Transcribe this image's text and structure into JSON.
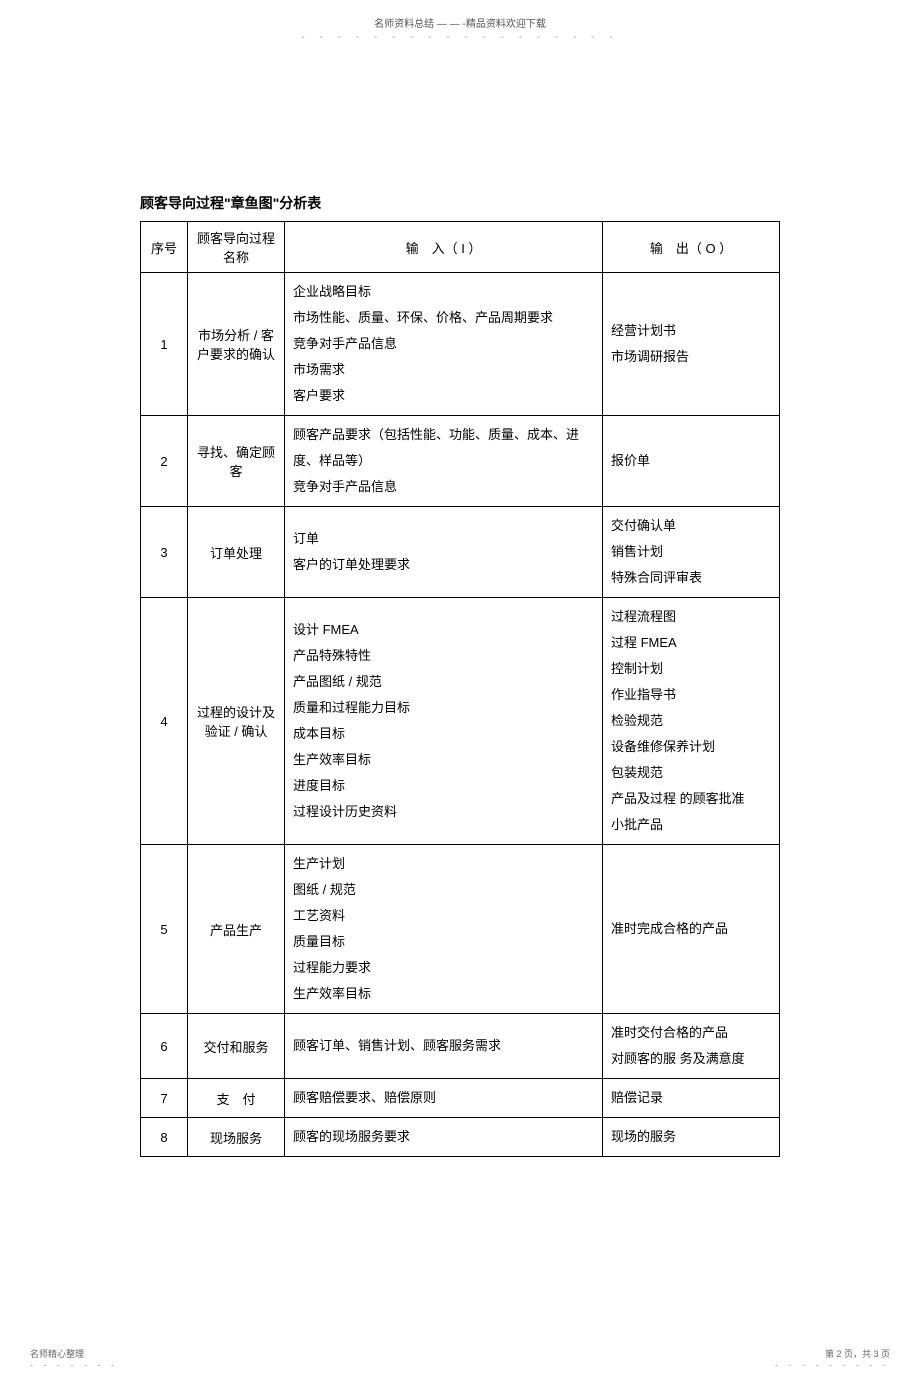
{
  "header": {
    "text": "名师资料总结 — — -精品资料欢迎下载",
    "dots": "- - - - - - - - - - - - - - - - - -"
  },
  "title": "顾客导向过程\"章鱼图\"分析表",
  "table": {
    "headers": {
      "seq": "序号",
      "name": "顾客导向过程名称",
      "input": "输　入（ I ）",
      "output": "输　出（ O ）"
    },
    "rows": [
      {
        "seq": "1",
        "name": "市场分析 / 客户要求的确认",
        "input": "企业战略目标\n市场性能、质量、环保、价格、产品周期要求\n竞争对手产品信息\n市场需求\n客户要求",
        "output": "经营计划书\n市场调研报告"
      },
      {
        "seq": "2",
        "name": "寻找、确定顾客",
        "input": "顾客产品要求（包括性能、功能、质量、成本、进度、样品等）\n竞争对手产品信息",
        "output": "报价单"
      },
      {
        "seq": "3",
        "name": "订单处理",
        "input": "订单\n客户的订单处理要求",
        "output": "交付确认单\n销售计划\n特殊合同评审表"
      },
      {
        "seq": "4",
        "name": "过程的设计及验证 / 确认",
        "input": "设计 FMEA\n产品特殊特性\n产品图纸 / 规范\n质量和过程能力目标\n成本目标\n生产效率目标\n进度目标\n过程设计历史资料",
        "output": "过程流程图\n过程 FMEA\n控制计划\n作业指导书\n检验规范\n设备维修保养计划\n包装规范\n产品及过程 的顾客批准\n小批产品"
      },
      {
        "seq": "5",
        "name": "产品生产",
        "input": "生产计划\n图纸 / 规范\n工艺资料\n质量目标\n过程能力要求\n生产效率目标",
        "output": "准时完成合格的产品"
      },
      {
        "seq": "6",
        "name": "交付和服务",
        "input": "顾客订单、销售计划、顾客服务需求",
        "output": "准时交付合格的产品\n对顾客的服 务及满意度"
      },
      {
        "seq": "7",
        "name": "支　付",
        "input": "顾客赔偿要求、赔偿原则",
        "output": "赔偿记录"
      },
      {
        "seq": "8",
        "name": "现场服务",
        "input": "顾客的现场服务要求",
        "output": "现场的服务"
      }
    ]
  },
  "footer": {
    "left": "名师精心整理",
    "left_dots": "- - - - - - -",
    "right": "第 2 页，共 3 页",
    "right_dots": "- - - - - - - - -"
  }
}
